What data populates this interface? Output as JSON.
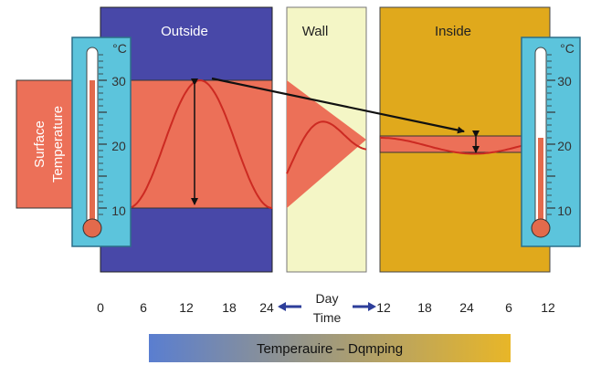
{
  "panels": {
    "outside": "Outside",
    "wall": "Wall",
    "inside": "Inside"
  },
  "surface_label": [
    "Surface",
    "Temperature"
  ],
  "unit": "°C",
  "thermometer_scale": [
    "30",
    "20",
    "10"
  ],
  "x_axis": {
    "outside_ticks": [
      "0",
      "6",
      "12",
      "18",
      "24"
    ],
    "inside_ticks": [
      "12",
      "18",
      "24",
      "6",
      "12"
    ],
    "center_label": [
      "Day",
      "Time"
    ]
  },
  "legend_bar": {
    "label": "Temperauire – Dqmping"
  },
  "colors": {
    "outside": "#4848a8",
    "wall": "#f4f6c6",
    "inside": "#e0a91c",
    "surface_band": "#ec7058",
    "curve": "#cc2a22",
    "thermometer_frame": "#5cc4dc",
    "mercury": "#e36a4c",
    "legend_left": "#5a7ed0",
    "legend_right": "#e8b628",
    "arrow": "#111111"
  },
  "thermometer_mercury": {
    "left": 30,
    "right": 21
  },
  "temperature_range": {
    "outside_min": 10,
    "outside_max": 30,
    "inside_min": 18.5,
    "inside_max": 21
  }
}
